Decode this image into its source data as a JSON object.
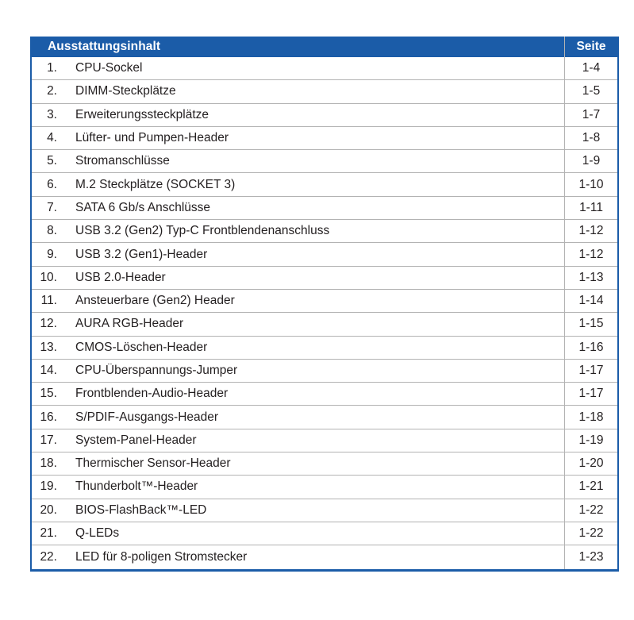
{
  "colors": {
    "header_bg": "#1b5ca8",
    "border_blue": "#1b5ca8",
    "separator": "#b3b3b3",
    "text": "#231f20"
  },
  "table": {
    "header": {
      "title": "Ausstattungsinhalt",
      "page_col": "Seite"
    },
    "rows": [
      {
        "num": "1.",
        "label": "CPU-Sockel",
        "page": "1-4"
      },
      {
        "num": "2.",
        "label": "DIMM-Steckplätze",
        "page": "1-5"
      },
      {
        "num": "3.",
        "label": "Erweiterungssteckplätze",
        "page": "1-7"
      },
      {
        "num": "4.",
        "label": "Lüfter- und Pumpen-Header",
        "page": "1-8"
      },
      {
        "num": "5.",
        "label": "Stromanschlüsse",
        "page": "1-9"
      },
      {
        "num": "6.",
        "label": "M.2 Steckplätze (SOCKET 3)",
        "page": "1-10"
      },
      {
        "num": "7.",
        "label": "SATA 6 Gb/s Anschlüsse",
        "page": "1-11"
      },
      {
        "num": "8.",
        "label": "USB 3.2 (Gen2) Typ-C Frontblendenanschluss",
        "page": "1-12"
      },
      {
        "num": "9.",
        "label": "USB 3.2 (Gen1)-Header",
        "page": "1-12"
      },
      {
        "num": "10.",
        "label": "USB 2.0-Header",
        "page": "1-13"
      },
      {
        "num": "11.",
        "label": "Ansteuerbare (Gen2) Header",
        "page": "1-14"
      },
      {
        "num": "12.",
        "label": "AURA RGB-Header",
        "page": "1-15"
      },
      {
        "num": "13.",
        "label": "CMOS-Löschen-Header",
        "page": "1-16"
      },
      {
        "num": "14.",
        "label": "CPU-Überspannungs-Jumper",
        "page": "1-17"
      },
      {
        "num": "15.",
        "label": "Frontblenden-Audio-Header",
        "page": "1-17"
      },
      {
        "num": "16.",
        "label": "S/PDIF-Ausgangs-Header",
        "page": "1-18"
      },
      {
        "num": "17.",
        "label": "System-Panel-Header",
        "page": "1-19"
      },
      {
        "num": "18.",
        "label": "Thermischer Sensor-Header",
        "page": "1-20"
      },
      {
        "num": "19.",
        "label": "Thunderbolt™-Header",
        "page": "1-21"
      },
      {
        "num": "20.",
        "label": "BIOS-FlashBack™-LED",
        "page": "1-22"
      },
      {
        "num": "21.",
        "label": "Q-LEDs",
        "page": "1-22"
      },
      {
        "num": "22.",
        "label": "LED für 8-poligen Stromstecker",
        "page": "1-23"
      }
    ]
  }
}
